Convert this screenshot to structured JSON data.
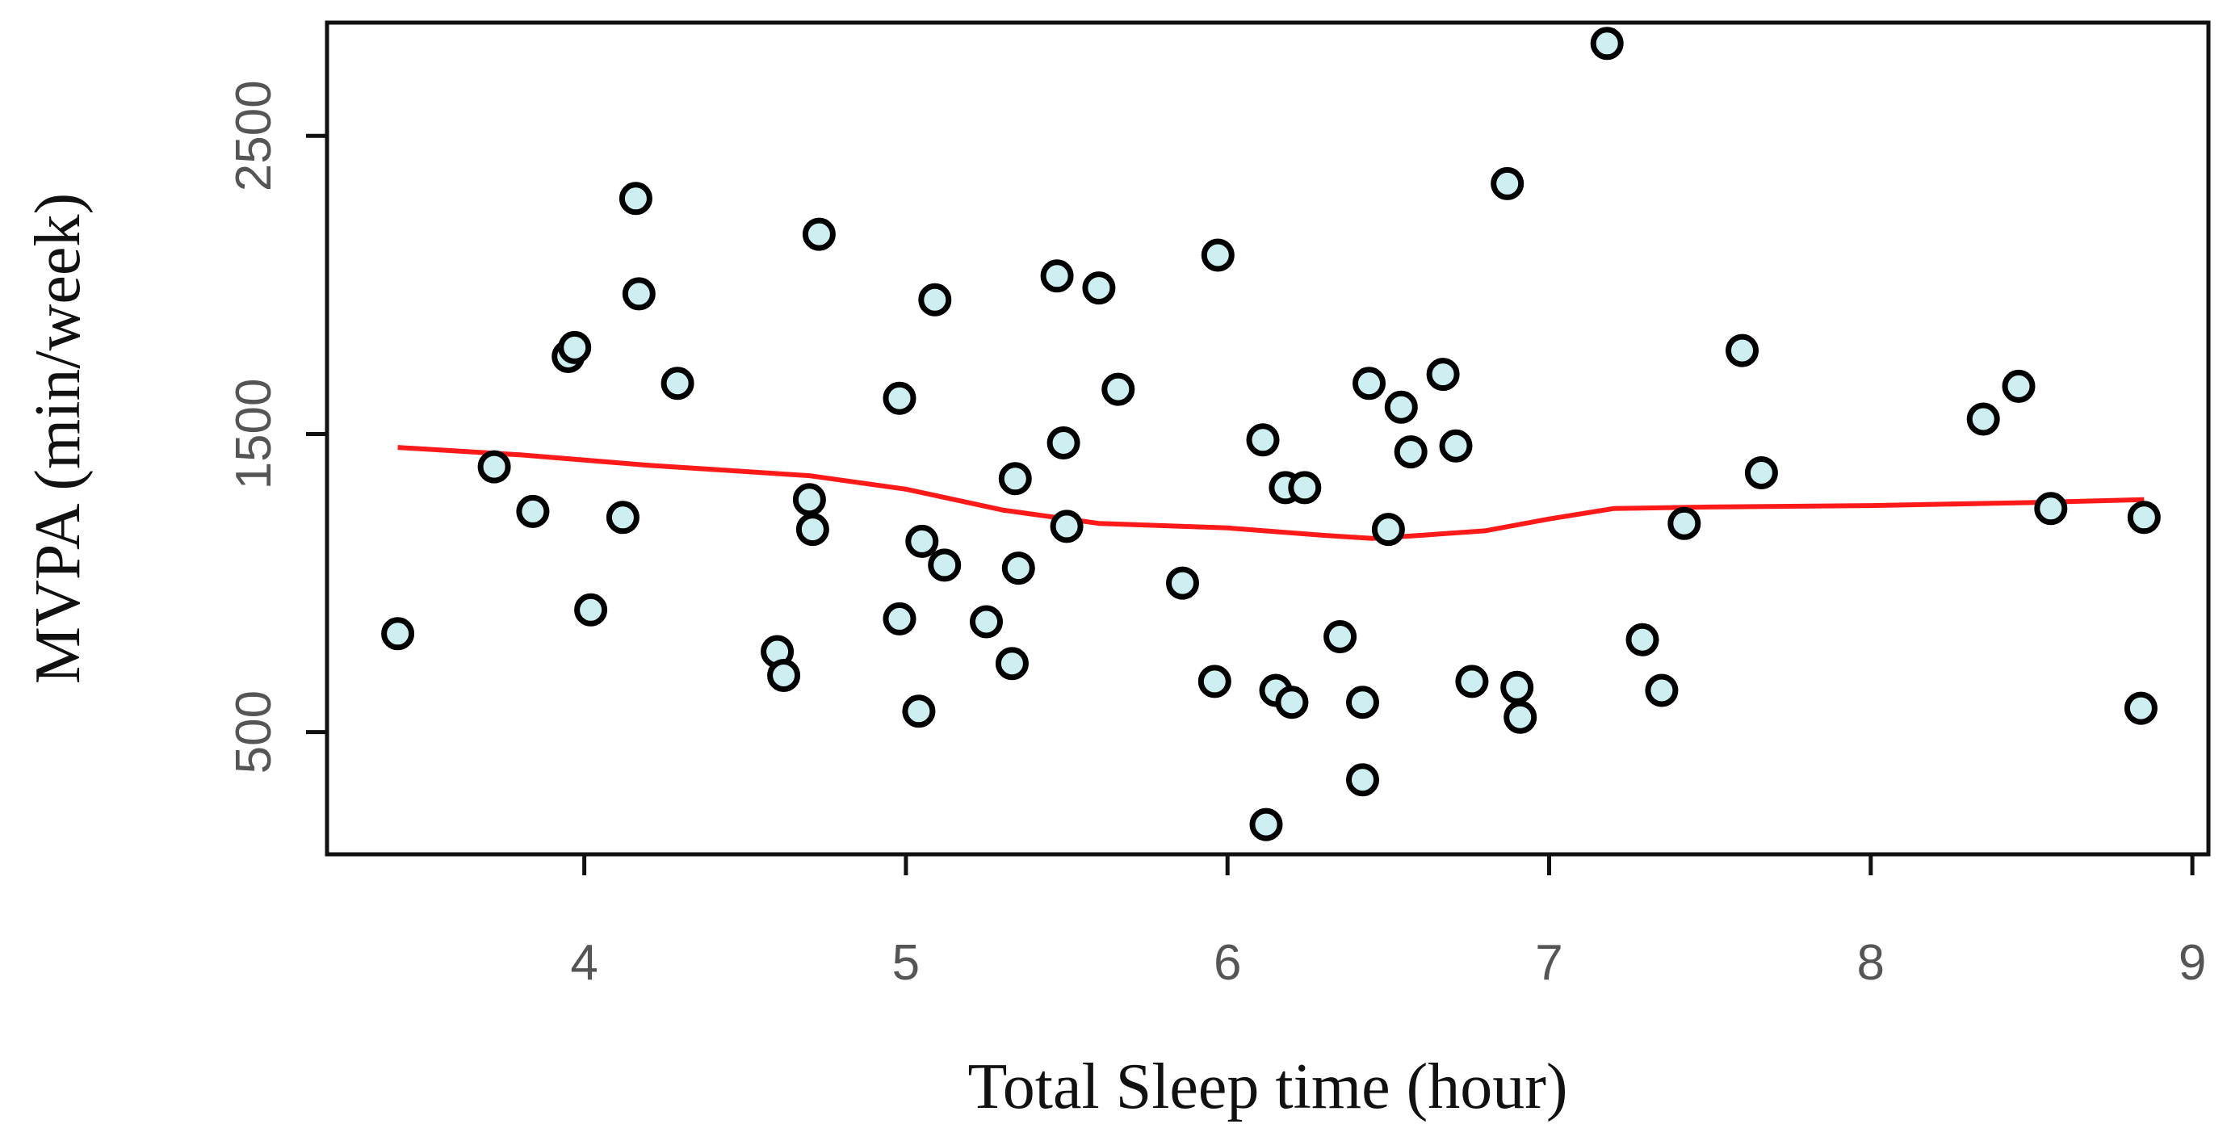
{
  "chart_data": {
    "type": "scatter",
    "xlabel": "Total Sleep time (hour)",
    "ylabel": "MVPA (min/week)",
    "xlim": [
      3.2,
      9.05
    ],
    "ylim": [
      90,
      2880
    ],
    "xticks": [
      4,
      5,
      6,
      7,
      8,
      9
    ],
    "yticks": [
      500,
      1500,
      2500
    ],
    "grid": false,
    "colors": {
      "points_fill": "#cdeff2",
      "points_stroke": "#000000",
      "smooth_line": "#ff1a1a"
    },
    "series": [
      {
        "type": "scatter",
        "points": [
          [
            3.42,
            830
          ],
          [
            3.72,
            1390
          ],
          [
            3.84,
            1240
          ],
          [
            3.95,
            1760
          ],
          [
            3.97,
            1790
          ],
          [
            4.02,
            910
          ],
          [
            4.12,
            1220
          ],
          [
            4.16,
            2290
          ],
          [
            4.17,
            1970
          ],
          [
            4.29,
            1670
          ],
          [
            4.6,
            770
          ],
          [
            4.62,
            690
          ],
          [
            4.7,
            1280
          ],
          [
            4.71,
            1180
          ],
          [
            4.73,
            2170
          ],
          [
            4.98,
            1620
          ],
          [
            4.98,
            880
          ],
          [
            5.04,
            570
          ],
          [
            5.05,
            1140
          ],
          [
            5.09,
            1950
          ],
          [
            5.12,
            1060
          ],
          [
            5.25,
            870
          ],
          [
            5.33,
            730
          ],
          [
            5.34,
            1350
          ],
          [
            5.35,
            1050
          ],
          [
            5.47,
            2030
          ],
          [
            5.49,
            1470
          ],
          [
            5.5,
            1190
          ],
          [
            5.6,
            1990
          ],
          [
            5.66,
            1650
          ],
          [
            5.86,
            1000
          ],
          [
            5.96,
            670
          ],
          [
            5.97,
            2100
          ],
          [
            6.11,
            1480
          ],
          [
            6.12,
            190
          ],
          [
            6.15,
            640
          ],
          [
            6.18,
            1320
          ],
          [
            6.2,
            600
          ],
          [
            6.24,
            1320
          ],
          [
            6.35,
            820
          ],
          [
            6.42,
            600
          ],
          [
            6.42,
            340
          ],
          [
            6.44,
            1670
          ],
          [
            6.5,
            1180
          ],
          [
            6.54,
            1590
          ],
          [
            6.57,
            1440
          ],
          [
            6.67,
            1700
          ],
          [
            6.71,
            1460
          ],
          [
            6.76,
            670
          ],
          [
            6.87,
            2340
          ],
          [
            6.9,
            650
          ],
          [
            6.91,
            550
          ],
          [
            7.18,
            2810
          ],
          [
            7.29,
            810
          ],
          [
            7.35,
            640
          ],
          [
            7.42,
            1200
          ],
          [
            7.6,
            1780
          ],
          [
            7.66,
            1370
          ],
          [
            8.35,
            1550
          ],
          [
            8.46,
            1660
          ],
          [
            8.56,
            1250
          ],
          [
            8.84,
            580
          ],
          [
            8.85,
            1220
          ]
        ]
      },
      {
        "type": "line",
        "x": [
          3.42,
          3.8,
          4.2,
          4.7,
          5.0,
          5.3,
          5.6,
          6.0,
          6.3,
          6.45,
          6.6,
          6.8,
          7.0,
          7.2,
          7.5,
          8.0,
          8.5,
          8.85
        ],
        "y": [
          1455,
          1430,
          1395,
          1360,
          1315,
          1245,
          1200,
          1185,
          1160,
          1150,
          1160,
          1175,
          1215,
          1250,
          1255,
          1260,
          1270,
          1280
        ]
      }
    ]
  }
}
